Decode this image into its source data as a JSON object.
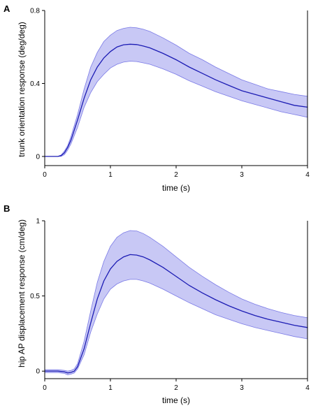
{
  "chart_data": [
    {
      "type": "line",
      "panel_label": "A",
      "xlabel": "time (s)",
      "ylabel": "trunk orientation response (deg/deg)",
      "xlim": [
        0,
        4
      ],
      "ylim": [
        -0.05,
        0.8
      ],
      "xticks": [
        0,
        1,
        2,
        3,
        4
      ],
      "yticks": [
        0,
        0.4,
        0.8
      ],
      "xtick_labels": [
        "0",
        "1",
        "2",
        "3",
        "4"
      ],
      "ytick_labels": [
        "0",
        "0.4",
        "0.8"
      ],
      "grid": false,
      "colors": {
        "line": "#1c1cb4",
        "band_fill": "#c8c8f5",
        "band_edge": "#7a7ae6"
      },
      "x": [
        0,
        0.1,
        0.2,
        0.25,
        0.3,
        0.35,
        0.4,
        0.5,
        0.6,
        0.7,
        0.8,
        0.9,
        1.0,
        1.1,
        1.2,
        1.3,
        1.4,
        1.5,
        1.6,
        1.8,
        2.0,
        2.2,
        2.4,
        2.6,
        2.8,
        3.0,
        3.2,
        3.4,
        3.6,
        3.8,
        4.0
      ],
      "series": [
        {
          "role": "mean",
          "values": [
            0.0,
            0.0,
            0.0,
            0.005,
            0.02,
            0.05,
            0.09,
            0.2,
            0.32,
            0.42,
            0.49,
            0.54,
            0.575,
            0.6,
            0.612,
            0.615,
            0.613,
            0.605,
            0.595,
            0.565,
            0.53,
            0.49,
            0.455,
            0.42,
            0.39,
            0.36,
            0.34,
            0.32,
            0.3,
            0.28,
            0.27
          ]
        },
        {
          "role": "upper",
          "values": [
            0.0,
            0.0,
            0.0,
            0.008,
            0.03,
            0.06,
            0.11,
            0.23,
            0.37,
            0.49,
            0.57,
            0.63,
            0.665,
            0.69,
            0.702,
            0.708,
            0.705,
            0.697,
            0.685,
            0.65,
            0.61,
            0.565,
            0.53,
            0.49,
            0.455,
            0.42,
            0.395,
            0.37,
            0.355,
            0.34,
            0.33
          ]
        },
        {
          "role": "lower",
          "values": [
            0.0,
            0.0,
            0.0,
            0.0,
            0.01,
            0.035,
            0.07,
            0.16,
            0.27,
            0.35,
            0.41,
            0.45,
            0.485,
            0.505,
            0.517,
            0.522,
            0.52,
            0.513,
            0.505,
            0.48,
            0.45,
            0.415,
            0.385,
            0.355,
            0.33,
            0.305,
            0.285,
            0.265,
            0.245,
            0.23,
            0.215
          ]
        }
      ]
    },
    {
      "type": "line",
      "panel_label": "B",
      "xlabel": "time (s)",
      "ylabel": "hip AP displacement response (cm/deg)",
      "xlim": [
        0,
        4
      ],
      "ylim": [
        -0.05,
        1.0
      ],
      "xticks": [
        0,
        1,
        2,
        3,
        4
      ],
      "yticks": [
        0,
        0.5,
        1
      ],
      "xtick_labels": [
        "0",
        "1",
        "2",
        "3",
        "4"
      ],
      "ytick_labels": [
        "0",
        "0.5",
        "1"
      ],
      "grid": false,
      "colors": {
        "line": "#1c1cb4",
        "band_fill": "#c8c8f5",
        "band_edge": "#7a7ae6"
      },
      "x": [
        0,
        0.1,
        0.2,
        0.3,
        0.35,
        0.4,
        0.45,
        0.5,
        0.6,
        0.7,
        0.8,
        0.9,
        1.0,
        1.1,
        1.2,
        1.3,
        1.4,
        1.5,
        1.6,
        1.8,
        2.0,
        2.2,
        2.4,
        2.6,
        2.8,
        3.0,
        3.2,
        3.4,
        3.6,
        3.8,
        4.0
      ],
      "series": [
        {
          "role": "mean",
          "values": [
            0.0,
            0.0,
            0.0,
            -0.005,
            -0.012,
            -0.008,
            0.0,
            0.03,
            0.15,
            0.32,
            0.48,
            0.6,
            0.68,
            0.73,
            0.76,
            0.775,
            0.772,
            0.76,
            0.74,
            0.69,
            0.63,
            0.57,
            0.52,
            0.475,
            0.435,
            0.4,
            0.37,
            0.345,
            0.325,
            0.305,
            0.29
          ]
        },
        {
          "role": "upper",
          "values": [
            0.01,
            0.01,
            0.01,
            0.005,
            0.0,
            0.005,
            0.015,
            0.05,
            0.2,
            0.4,
            0.59,
            0.73,
            0.83,
            0.89,
            0.92,
            0.935,
            0.932,
            0.915,
            0.89,
            0.83,
            0.76,
            0.69,
            0.63,
            0.575,
            0.525,
            0.48,
            0.445,
            0.415,
            0.39,
            0.37,
            0.355
          ]
        },
        {
          "role": "lower",
          "values": [
            -0.01,
            -0.01,
            -0.01,
            -0.015,
            -0.025,
            -0.02,
            -0.012,
            0.015,
            0.11,
            0.26,
            0.38,
            0.48,
            0.545,
            0.58,
            0.6,
            0.61,
            0.61,
            0.6,
            0.585,
            0.545,
            0.5,
            0.455,
            0.415,
            0.375,
            0.345,
            0.315,
            0.29,
            0.27,
            0.25,
            0.23,
            0.215
          ]
        }
      ]
    }
  ]
}
